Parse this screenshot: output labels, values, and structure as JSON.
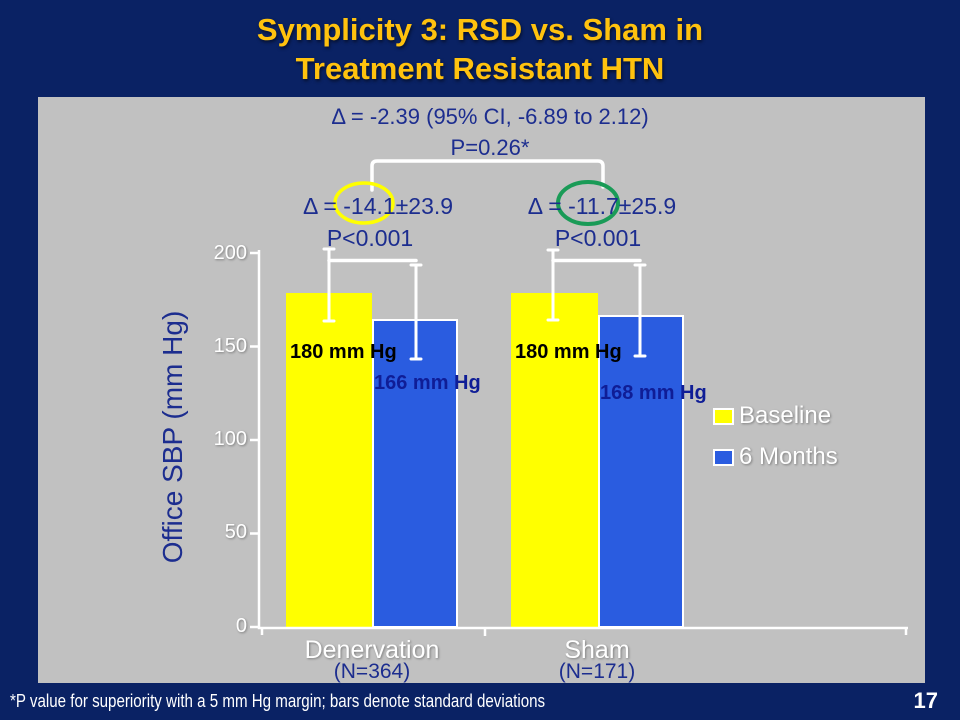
{
  "slide": {
    "title": [
      "Symplicity 3: RSD vs. Sham in",
      "Treatment Resistant HTN"
    ],
    "footnote": "*P value for superiority with a 5 mm Hg margin; bars denote standard deviations",
    "page_number": "17"
  },
  "colors": {
    "background": "#0A2264",
    "panel": "#C1C1C1",
    "title": "#FFC20E",
    "annotation_text": "#1C2D8F",
    "baseline_bar": "#FFFF00",
    "six_months_bar": "#2A5CE0",
    "circle_group1": "#FFFF00",
    "circle_group2": "#1A9B57",
    "axis": "#FFFFFF"
  },
  "chart_data": {
    "type": "bar",
    "title": "",
    "xlabel": "",
    "ylabel": "Office SBP (mm Hg)",
    "ylim": [
      0,
      200
    ],
    "yticks": [
      0,
      50,
      100,
      150,
      200
    ],
    "grid": false,
    "legend_position": "right",
    "categories": [
      "Denervation",
      "Sham"
    ],
    "category_sublabels": [
      "(N=364)",
      "(N=171)"
    ],
    "series": [
      {
        "name": "Baseline",
        "color": "#FFFF00",
        "values": [
          180,
          180
        ],
        "bar_labels": [
          "180 mm Hg",
          "180 mm Hg"
        ]
      },
      {
        "name": "6 Months",
        "color": "#2A5CE0",
        "values": [
          166,
          168
        ],
        "bar_labels": [
          "166 mm Hg",
          "168 mm Hg"
        ]
      }
    ],
    "annotations": {
      "overall_delta": "Δ = -2.39 (95% CI, -6.89 to 2.12)",
      "overall_p": "P=0.26*",
      "groups": [
        {
          "category": "Denervation",
          "delta": "Δ = -14.1±23.9",
          "p": "P<0.001",
          "circled_value": "-14.1",
          "circle_color": "#FFFF00"
        },
        {
          "category": "Sham",
          "delta": "Δ = -11.7±25.9",
          "p": "P<0.001",
          "circled_value": "-11.7",
          "circle_color": "#1A9B57"
        }
      ],
      "error_bars": "standard deviations"
    }
  }
}
